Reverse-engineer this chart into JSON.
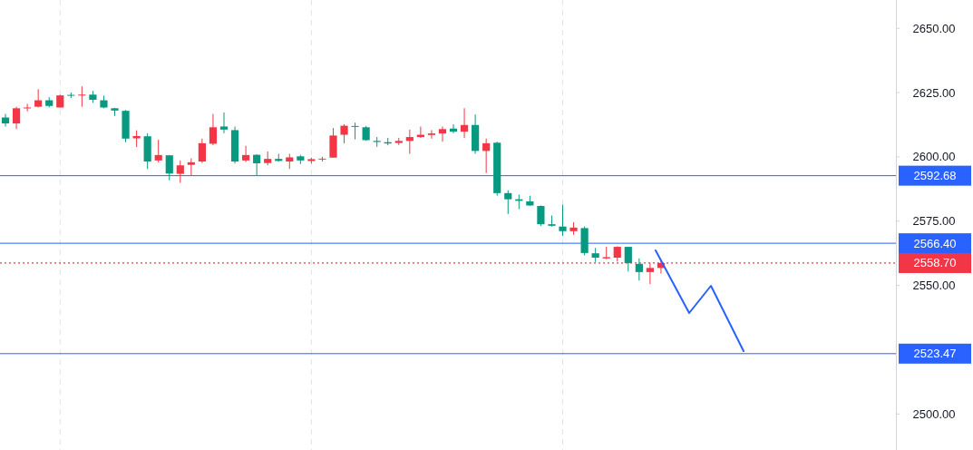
{
  "chart_data": {
    "type": "candlestick",
    "categories": [
      null,
      null,
      null,
      null,
      null,
      null,
      null,
      null,
      null,
      null,
      null,
      null,
      null,
      null,
      null,
      null,
      null,
      null,
      null,
      null,
      null,
      null,
      null,
      null,
      null,
      null,
      null,
      null,
      null,
      null,
      null,
      null,
      null,
      null,
      null,
      null,
      null,
      null,
      null,
      null,
      null,
      null,
      null,
      null,
      null,
      null,
      null,
      null,
      null,
      null,
      null,
      null,
      null,
      null,
      null,
      null,
      null,
      null,
      null,
      null,
      null,
      null,
      null,
      null,
      null,
      null,
      null,
      null,
      null,
      null,
      null,
      null,
      null,
      null,
      null,
      null,
      null,
      null,
      null,
      null,
      null,
      null
    ],
    "ohlc": [
      [
        2615.3,
        2616.7,
        2611.8,
        2613.0
      ],
      [
        2613.0,
        2619.5,
        2610.8,
        2618.9
      ],
      [
        2618.9,
        2620.6,
        2617.7,
        2619.2
      ],
      [
        2619.5,
        2626.3,
        2619.2,
        2622.0
      ],
      [
        2622.0,
        2623.2,
        2619.2,
        2619.8
      ],
      [
        2619.2,
        2624.2,
        2619.2,
        2623.9
      ],
      [
        2624.1,
        2625.0,
        2622.9,
        2623.8
      ],
      [
        2623.9,
        2627.4,
        2619.5,
        2624.2
      ],
      [
        2624.2,
        2625.6,
        2621.0,
        2622.2
      ],
      [
        2622.0,
        2623.8,
        2618.9,
        2619.2
      ],
      [
        2618.9,
        2619.1,
        2615.9,
        2618.0
      ],
      [
        2617.9,
        2618.2,
        2605.7,
        2607.1
      ],
      [
        2607.2,
        2610.3,
        2603.8,
        2608.1
      ],
      [
        2608.0,
        2609.2,
        2595.3,
        2598.2
      ],
      [
        2598.6,
        2606.7,
        2597.9,
        2600.7
      ],
      [
        2600.6,
        2600.7,
        2590.9,
        2593.5
      ],
      [
        2593.4,
        2598.6,
        2589.9,
        2596.7
      ],
      [
        2596.9,
        2599.4,
        2592.9,
        2597.9
      ],
      [
        2598.2,
        2607.1,
        2597.6,
        2605.3
      ],
      [
        2605.1,
        2616.7,
        2604.5,
        2611.5
      ],
      [
        2611.8,
        2617.3,
        2609.2,
        2610.6
      ],
      [
        2610.4,
        2611.8,
        2597.4,
        2598.2
      ],
      [
        2598.6,
        2604.3,
        2598.0,
        2600.7
      ],
      [
        2600.8,
        2601.0,
        2592.7,
        2597.5
      ],
      [
        2597.6,
        2602.1,
        2596.7,
        2599.2
      ],
      [
        2599.2,
        2601.2,
        2598.1,
        2598.4
      ],
      [
        2598.2,
        2601.2,
        2595.3,
        2599.8
      ],
      [
        2600.2,
        2600.8,
        2597.2,
        2598.6
      ],
      [
        2598.4,
        2599.7,
        2597.4,
        2599.1
      ],
      [
        2599.0,
        2600.0,
        2598.2,
        2599.3
      ],
      [
        2599.7,
        2611.2,
        2599.7,
        2608.3
      ],
      [
        2608.6,
        2612.7,
        2605.3,
        2612.1
      ],
      [
        2612.0,
        2613.3,
        2606.8,
        2611.7
      ],
      [
        2611.5,
        2612.0,
        2606.2,
        2606.5
      ],
      [
        2606.2,
        2607.7,
        2603.9,
        2605.8
      ],
      [
        2605.7,
        2607.4,
        2604.5,
        2605.2
      ],
      [
        2605.4,
        2607.4,
        2604.6,
        2606.2
      ],
      [
        2606.2,
        2610.6,
        2601.2,
        2607.7
      ],
      [
        2607.7,
        2611.8,
        2607.3,
        2608.6
      ],
      [
        2608.5,
        2610.4,
        2607.1,
        2609.1
      ],
      [
        2609.1,
        2611.8,
        2605.9,
        2610.8
      ],
      [
        2611.0,
        2612.7,
        2609.2,
        2609.8
      ],
      [
        2609.8,
        2618.9,
        2607.3,
        2612.4
      ],
      [
        2612.4,
        2616.5,
        2601.2,
        2602.3
      ],
      [
        2602.3,
        2607.1,
        2593.7,
        2605.3
      ],
      [
        2605.5,
        2605.9,
        2584.9,
        2585.9
      ],
      [
        2585.9,
        2587.0,
        2577.8,
        2583.5
      ],
      [
        2583.5,
        2585.3,
        2579.7,
        2582.9
      ],
      [
        2582.7,
        2584.9,
        2580.9,
        2581.1
      ],
      [
        2580.9,
        2581.1,
        2573.1,
        2573.8
      ],
      [
        2573.8,
        2577.2,
        2572.9,
        2573.2
      ],
      [
        2572.9,
        2581.4,
        2569.3,
        2571.1
      ],
      [
        2571.1,
        2574.6,
        2569.7,
        2572.5
      ],
      [
        2572.3,
        2572.9,
        2561.7,
        2562.6
      ],
      [
        2562.5,
        2564.6,
        2559.1,
        2560.8
      ],
      [
        2560.5,
        2565.0,
        2560.2,
        2561.0
      ],
      [
        2560.8,
        2565.2,
        2559.3,
        2565.0
      ],
      [
        2565.0,
        2565.0,
        2555.4,
        2558.7
      ],
      [
        2558.4,
        2560.5,
        2551.9,
        2555.2
      ],
      [
        2555.2,
        2558.7,
        2550.5,
        2556.8
      ],
      [
        2556.8,
        2559.9,
        2554.6,
        2558.7
      ],
      null,
      null,
      null,
      null,
      null,
      null,
      null,
      null,
      null,
      null,
      null,
      null,
      null,
      null,
      null,
      null,
      null,
      null,
      null,
      null,
      null
    ],
    "colors": [
      "#089981",
      "#f23645",
      "#f23645",
      "#f23645",
      "#089981",
      "#f23645",
      "#089981",
      "#f23645",
      "#089981",
      "#089981",
      "#089981",
      "#089981",
      "#f23645",
      "#089981",
      "#f23645",
      "#089981",
      "#f23645",
      "#f23645",
      "#f23645",
      "#f23645",
      "#089981",
      "#089981",
      "#f23645",
      "#089981",
      "#f23645",
      "#089981",
      "#f23645",
      "#089981",
      "#f23645",
      "#f23645",
      "#f23645",
      "#f23645",
      "#089981",
      "#089981",
      "#089981",
      "#089981",
      "#f23645",
      "#f23645",
      "#f23645",
      "#f23645",
      "#f23645",
      "#089981",
      "#f23645",
      "#089981",
      "#f23645",
      "#089981",
      "#089981",
      "#089981",
      "#089981",
      "#089981",
      "#089981",
      "#089981",
      "#f23645",
      "#089981",
      "#089981",
      "#f23645",
      "#f23645",
      "#089981",
      "#089981",
      "#f23645",
      "#f23645",
      null,
      null,
      null,
      null,
      null,
      null,
      null,
      null,
      null,
      null,
      null,
      null,
      null,
      null,
      null,
      null,
      null,
      null,
      null,
      null,
      null
    ],
    "ylim": [
      2486,
      2661
    ],
    "yticks": [
      {
        "value": 2500,
        "label": "2500.00"
      },
      {
        "value": 2550,
        "label": "2550.00"
      },
      {
        "value": 2575,
        "label": "2575.00"
      },
      {
        "value": 2600,
        "label": "2600.00"
      },
      {
        "value": 2625,
        "label": "2625.00"
      },
      {
        "value": 2650,
        "label": "2650.00"
      }
    ],
    "ref_lines": [
      {
        "axis": "y",
        "value": 2592.68,
        "label": "2592.68",
        "color": "#2962ff"
      },
      {
        "axis": "y",
        "value": 2566.4,
        "label": "2566.40",
        "color": "#2962ff"
      },
      {
        "axis": "y",
        "value": 2523.47,
        "label": "2523.47",
        "color": "#2962ff"
      },
      {
        "axis": "y",
        "value": 2558.7,
        "label": "2558.70",
        "color": "#f23645",
        "line_style": "dotted"
      }
    ],
    "grid": "x",
    "tick_labels": "y"
  }
}
